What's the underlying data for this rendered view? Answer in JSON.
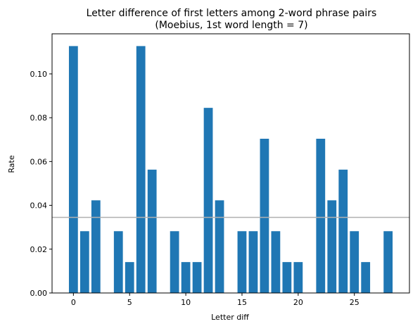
{
  "chart_data": {
    "type": "bar",
    "title": "Letter difference of first letters among 2-word phrase pairs",
    "subtitle": "(Moebius, 1st word length = 7)",
    "xlabel": "Letter diff",
    "ylabel": "Rate",
    "x": [
      0,
      1,
      2,
      3,
      4,
      5,
      6,
      7,
      8,
      9,
      10,
      11,
      12,
      13,
      14,
      15,
      16,
      17,
      18,
      19,
      20,
      21,
      22,
      23,
      24,
      25,
      26,
      27,
      28
    ],
    "values": [
      0.1127,
      0.0282,
      0.0423,
      0.0,
      0.0282,
      0.0141,
      0.1127,
      0.0563,
      0.0,
      0.0282,
      0.0141,
      0.0141,
      0.0845,
      0.0423,
      0.0,
      0.0282,
      0.0282,
      0.0704,
      0.0282,
      0.0141,
      0.0141,
      0.0,
      0.0704,
      0.0423,
      0.0563,
      0.0282,
      0.0141,
      0.0,
      0.0282
    ],
    "xlim": [
      -1.9,
      29.9
    ],
    "ylim": [
      0,
      0.1183
    ],
    "xticks": [
      0,
      5,
      10,
      15,
      20,
      25
    ],
    "xtick_labels": [
      "0",
      "5",
      "10",
      "15",
      "20",
      "25"
    ],
    "yticks": [
      0,
      0.02,
      0.04,
      0.06,
      0.08,
      0.1
    ],
    "ytick_labels": [
      "0.00",
      "0.02",
      "0.04",
      "0.06",
      "0.08",
      "0.10"
    ],
    "reference_line": 0.0345,
    "bar_color": "#1f77b4",
    "reference_line_color": "#b0b0b0",
    "grid": false
  }
}
